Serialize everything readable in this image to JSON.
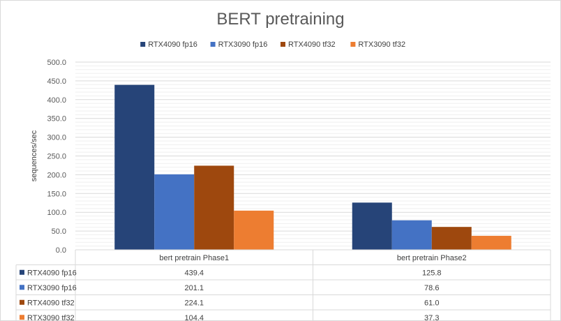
{
  "chart_data": {
    "type": "bar",
    "title": "BERT pretraining",
    "ylabel": "sequences/sec",
    "xlabel": "",
    "ylim": [
      0,
      500
    ],
    "ytick_step": 50,
    "ytick_labels": [
      "0.0",
      "50.0",
      "100.0",
      "150.0",
      "200.0",
      "250.0",
      "300.0",
      "350.0",
      "400.0",
      "450.0",
      "500.0"
    ],
    "grid": true,
    "legend_position": "top",
    "categories": [
      "bert pretrain Phase1",
      "bert pretrain Phase2"
    ],
    "series": [
      {
        "name": "RTX4090 fp16",
        "color": "#264478",
        "values": [
          439.4,
          125.8
        ],
        "labels": [
          "439.4",
          "125.8"
        ]
      },
      {
        "name": "RTX3090 fp16",
        "color": "#4472C4",
        "values": [
          201.1,
          78.6
        ],
        "labels": [
          "201.1",
          "78.6"
        ]
      },
      {
        "name": "RTX4090 tf32",
        "color": "#9E480E",
        "values": [
          224.1,
          61.0
        ],
        "labels": [
          "224.1",
          "61.0"
        ]
      },
      {
        "name": "RTX3090 tf32",
        "color": "#ED7D31",
        "values": [
          104.4,
          37.3
        ],
        "labels": [
          "104.4",
          "37.3"
        ]
      }
    ],
    "data_table": true
  }
}
